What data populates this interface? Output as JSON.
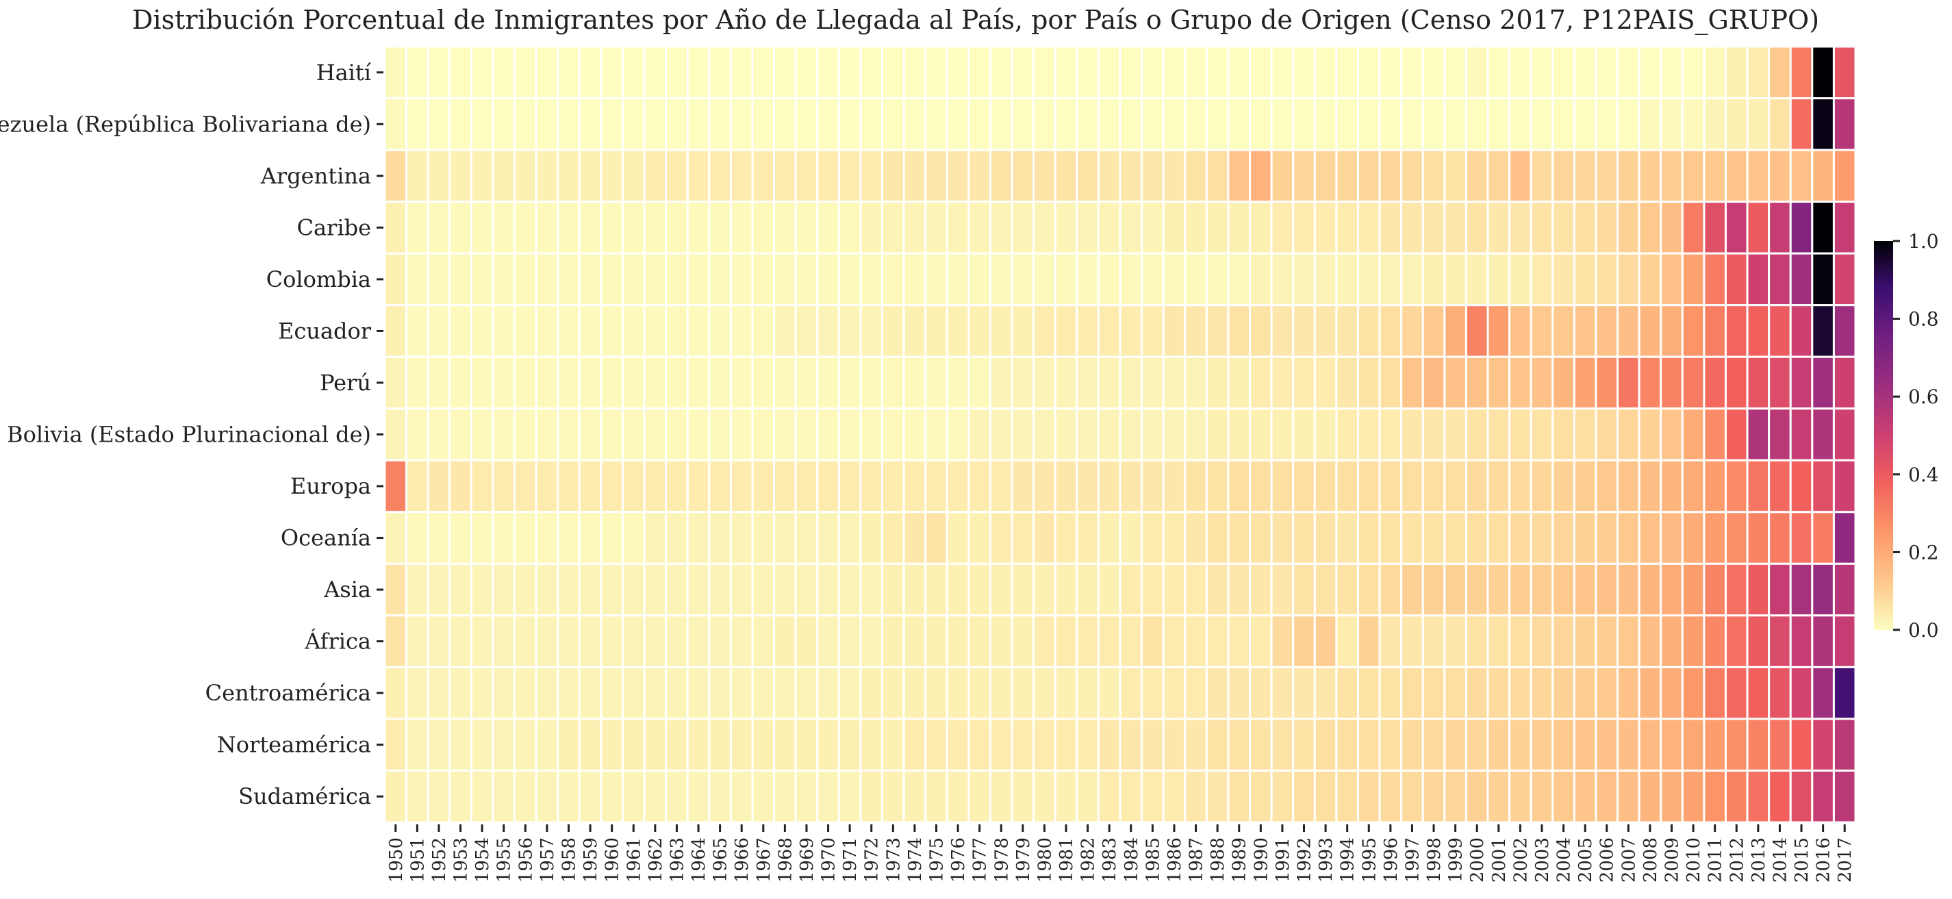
{
  "chart_data": {
    "type": "heatmap",
    "title": "Distribución Porcentual de Inmigrantes por Año de Llegada al País, por País o Grupo de Origen (Censo 2017, P12PAIS_GRUPO)",
    "xlabel": "",
    "ylabel": "",
    "rows": [
      "Haití",
      "Venezuela (República Bolivariana de)",
      "Argentina",
      "Caribe",
      "Colombia",
      "Ecuador",
      "Perú",
      "Bolivia (Estado Plurinacional de)",
      "Europa",
      "Oceanía",
      "Asia",
      "África",
      "Centroamérica",
      "Norteamérica",
      "Sudamérica"
    ],
    "columns": [
      "1950",
      "1951",
      "1952",
      "1953",
      "1954",
      "1955",
      "1956",
      "1957",
      "1958",
      "1959",
      "1960",
      "1961",
      "1962",
      "1963",
      "1964",
      "1965",
      "1966",
      "1967",
      "1968",
      "1969",
      "1970",
      "1971",
      "1972",
      "1973",
      "1974",
      "1975",
      "1976",
      "1977",
      "1978",
      "1979",
      "1980",
      "1981",
      "1982",
      "1983",
      "1984",
      "1985",
      "1986",
      "1987",
      "1988",
      "1989",
      "1990",
      "1991",
      "1992",
      "1993",
      "1994",
      "1995",
      "1996",
      "1997",
      "1998",
      "1999",
      "2000",
      "2001",
      "2002",
      "2003",
      "2004",
      "2005",
      "2006",
      "2007",
      "2008",
      "2009",
      "2010",
      "2011",
      "2012",
      "2013",
      "2014",
      "2015",
      "2016",
      "2017"
    ],
    "values": [
      [
        0.01,
        0,
        0,
        0,
        0,
        0,
        0,
        0,
        0,
        0,
        0,
        0,
        0,
        0,
        0,
        0,
        0,
        0,
        0,
        0,
        0,
        0,
        0,
        0,
        0,
        0,
        0,
        0,
        0,
        0,
        0,
        0,
        0,
        0,
        0,
        0,
        0,
        0,
        0,
        0,
        0,
        0,
        0,
        0,
        0,
        0,
        0,
        0,
        0,
        0,
        0.01,
        0,
        0,
        0,
        0,
        0,
        0,
        0,
        0,
        0,
        0,
        0.01,
        0.03,
        0.04,
        0.12,
        0.32,
        1.0,
        0.42
      ],
      [
        0.01,
        0,
        0,
        0,
        0,
        0,
        0,
        0,
        0,
        0,
        0,
        0,
        0,
        0,
        0,
        0,
        0,
        0,
        0,
        0,
        0,
        0,
        0,
        0,
        0,
        0,
        0,
        0,
        0,
        0,
        0,
        0,
        0,
        0,
        0,
        0,
        0,
        0,
        0,
        0,
        0,
        0,
        0,
        0,
        0,
        0,
        0,
        0,
        0,
        0,
        0,
        0,
        0,
        0,
        0,
        0,
        0,
        0,
        0.01,
        0.01,
        0.01,
        0.02,
        0.03,
        0.03,
        0.06,
        0.35,
        0.98,
        0.56
      ],
      [
        0.08,
        0.03,
        0.03,
        0.03,
        0.03,
        0.03,
        0.03,
        0.03,
        0.03,
        0.03,
        0.03,
        0.03,
        0.04,
        0.04,
        0.04,
        0.04,
        0.04,
        0.04,
        0.04,
        0.04,
        0.04,
        0.04,
        0.04,
        0.05,
        0.05,
        0.05,
        0.05,
        0.05,
        0.06,
        0.06,
        0.06,
        0.06,
        0.06,
        0.05,
        0.05,
        0.05,
        0.05,
        0.06,
        0.07,
        0.13,
        0.18,
        0.1,
        0.09,
        0.09,
        0.09,
        0.09,
        0.09,
        0.08,
        0.07,
        0.06,
        0.09,
        0.09,
        0.14,
        0.08,
        0.09,
        0.09,
        0.09,
        0.1,
        0.11,
        0.11,
        0.12,
        0.12,
        0.13,
        0.13,
        0.14,
        0.14,
        0.17,
        0.24
      ],
      [
        0.03,
        0.01,
        0.01,
        0.01,
        0.01,
        0.01,
        0.01,
        0.01,
        0.01,
        0.01,
        0.01,
        0.01,
        0.01,
        0.01,
        0.01,
        0.01,
        0.01,
        0.01,
        0.01,
        0.01,
        0.01,
        0.01,
        0.02,
        0.02,
        0.02,
        0.02,
        0.02,
        0.02,
        0.02,
        0.02,
        0.02,
        0.02,
        0.02,
        0.02,
        0.02,
        0.02,
        0.03,
        0.03,
        0.03,
        0.03,
        0.03,
        0.04,
        0.04,
        0.04,
        0.04,
        0.04,
        0.05,
        0.05,
        0.05,
        0.05,
        0.06,
        0.05,
        0.05,
        0.06,
        0.06,
        0.07,
        0.08,
        0.1,
        0.12,
        0.15,
        0.32,
        0.44,
        0.52,
        0.4,
        0.52,
        0.7,
        1.0,
        0.52
      ],
      [
        0.03,
        0.01,
        0.01,
        0.01,
        0.01,
        0.01,
        0.01,
        0.01,
        0.01,
        0.01,
        0.01,
        0.01,
        0.01,
        0.01,
        0.01,
        0.01,
        0.01,
        0.01,
        0.01,
        0.01,
        0.01,
        0.01,
        0.01,
        0.01,
        0.01,
        0.01,
        0.01,
        0.01,
        0.01,
        0.01,
        0.01,
        0.01,
        0.01,
        0.01,
        0.01,
        0.01,
        0.01,
        0.01,
        0.01,
        0.01,
        0.02,
        0.02,
        0.02,
        0.02,
        0.02,
        0.02,
        0.02,
        0.02,
        0.03,
        0.03,
        0.03,
        0.03,
        0.03,
        0.04,
        0.05,
        0.06,
        0.07,
        0.08,
        0.1,
        0.14,
        0.22,
        0.32,
        0.4,
        0.5,
        0.52,
        0.62,
        0.99,
        0.48
      ],
      [
        0.03,
        0.01,
        0.01,
        0.01,
        0.01,
        0.01,
        0.01,
        0.01,
        0.01,
        0.01,
        0.01,
        0.01,
        0.01,
        0.01,
        0.01,
        0.01,
        0.01,
        0.01,
        0.02,
        0.02,
        0.02,
        0.02,
        0.02,
        0.03,
        0.03,
        0.03,
        0.03,
        0.03,
        0.03,
        0.03,
        0.04,
        0.04,
        0.04,
        0.04,
        0.04,
        0.04,
        0.05,
        0.05,
        0.05,
        0.06,
        0.06,
        0.05,
        0.05,
        0.05,
        0.05,
        0.06,
        0.07,
        0.09,
        0.12,
        0.19,
        0.3,
        0.24,
        0.14,
        0.12,
        0.12,
        0.13,
        0.14,
        0.15,
        0.17,
        0.19,
        0.26,
        0.31,
        0.37,
        0.38,
        0.4,
        0.5,
        0.95,
        0.62
      ],
      [
        0.02,
        0.01,
        0.01,
        0.01,
        0.01,
        0.01,
        0.01,
        0.01,
        0.01,
        0.01,
        0.01,
        0.01,
        0.01,
        0.01,
        0.01,
        0.01,
        0.01,
        0.01,
        0.01,
        0.01,
        0.01,
        0.01,
        0.01,
        0.01,
        0.01,
        0.01,
        0.01,
        0.01,
        0.02,
        0.02,
        0.02,
        0.02,
        0.02,
        0.02,
        0.02,
        0.02,
        0.02,
        0.02,
        0.03,
        0.03,
        0.04,
        0.04,
        0.04,
        0.04,
        0.05,
        0.06,
        0.07,
        0.13,
        0.16,
        0.14,
        0.14,
        0.13,
        0.13,
        0.14,
        0.17,
        0.22,
        0.27,
        0.33,
        0.29,
        0.3,
        0.32,
        0.36,
        0.38,
        0.42,
        0.45,
        0.52,
        0.62,
        0.5
      ],
      [
        0.02,
        0.01,
        0.01,
        0.01,
        0.01,
        0.01,
        0.01,
        0.01,
        0.01,
        0.01,
        0.01,
        0.01,
        0.01,
        0.01,
        0.01,
        0.01,
        0.01,
        0.01,
        0.01,
        0.01,
        0.01,
        0.01,
        0.01,
        0.01,
        0.01,
        0.01,
        0.01,
        0.02,
        0.02,
        0.02,
        0.02,
        0.02,
        0.02,
        0.02,
        0.02,
        0.02,
        0.02,
        0.02,
        0.03,
        0.03,
        0.03,
        0.03,
        0.03,
        0.03,
        0.04,
        0.04,
        0.04,
        0.05,
        0.05,
        0.05,
        0.06,
        0.06,
        0.06,
        0.06,
        0.07,
        0.07,
        0.08,
        0.09,
        0.1,
        0.13,
        0.2,
        0.28,
        0.38,
        0.58,
        0.55,
        0.52,
        0.58,
        0.5
      ],
      [
        0.3,
        0.04,
        0.05,
        0.05,
        0.04,
        0.04,
        0.04,
        0.04,
        0.04,
        0.04,
        0.04,
        0.04,
        0.04,
        0.04,
        0.04,
        0.04,
        0.04,
        0.04,
        0.04,
        0.04,
        0.04,
        0.04,
        0.04,
        0.04,
        0.04,
        0.04,
        0.04,
        0.04,
        0.04,
        0.05,
        0.05,
        0.05,
        0.05,
        0.05,
        0.05,
        0.05,
        0.05,
        0.06,
        0.06,
        0.07,
        0.07,
        0.07,
        0.07,
        0.07,
        0.07,
        0.07,
        0.07,
        0.07,
        0.07,
        0.07,
        0.08,
        0.08,
        0.08,
        0.09,
        0.1,
        0.11,
        0.12,
        0.13,
        0.15,
        0.17,
        0.2,
        0.24,
        0.28,
        0.33,
        0.36,
        0.38,
        0.44,
        0.5
      ],
      [
        0.02,
        0.01,
        0.01,
        0.01,
        0.01,
        0.01,
        0.01,
        0.01,
        0.01,
        0.01,
        0.01,
        0.01,
        0.02,
        0.02,
        0.02,
        0.02,
        0.02,
        0.02,
        0.02,
        0.02,
        0.02,
        0.02,
        0.03,
        0.04,
        0.05,
        0.06,
        0.03,
        0.03,
        0.04,
        0.04,
        0.05,
        0.04,
        0.04,
        0.03,
        0.03,
        0.04,
        0.04,
        0.05,
        0.06,
        0.06,
        0.06,
        0.06,
        0.06,
        0.06,
        0.05,
        0.06,
        0.06,
        0.06,
        0.06,
        0.06,
        0.07,
        0.07,
        0.08,
        0.08,
        0.09,
        0.1,
        0.11,
        0.12,
        0.14,
        0.16,
        0.2,
        0.24,
        0.27,
        0.3,
        0.32,
        0.34,
        0.32,
        0.66
      ],
      [
        0.06,
        0.02,
        0.02,
        0.02,
        0.02,
        0.02,
        0.02,
        0.02,
        0.02,
        0.02,
        0.02,
        0.02,
        0.02,
        0.02,
        0.02,
        0.02,
        0.02,
        0.02,
        0.02,
        0.02,
        0.02,
        0.02,
        0.02,
        0.03,
        0.03,
        0.03,
        0.03,
        0.03,
        0.03,
        0.03,
        0.03,
        0.03,
        0.03,
        0.03,
        0.04,
        0.04,
        0.04,
        0.04,
        0.05,
        0.05,
        0.05,
        0.05,
        0.06,
        0.06,
        0.06,
        0.07,
        0.08,
        0.1,
        0.1,
        0.1,
        0.1,
        0.1,
        0.11,
        0.11,
        0.12,
        0.13,
        0.14,
        0.15,
        0.17,
        0.2,
        0.24,
        0.3,
        0.34,
        0.4,
        0.52,
        0.6,
        0.64,
        0.56
      ],
      [
        0.06,
        0.02,
        0.02,
        0.02,
        0.02,
        0.02,
        0.02,
        0.02,
        0.02,
        0.02,
        0.02,
        0.02,
        0.02,
        0.02,
        0.02,
        0.02,
        0.02,
        0.02,
        0.03,
        0.03,
        0.02,
        0.02,
        0.02,
        0.03,
        0.03,
        0.03,
        0.03,
        0.03,
        0.03,
        0.03,
        0.04,
        0.04,
        0.04,
        0.04,
        0.04,
        0.06,
        0.04,
        0.04,
        0.04,
        0.04,
        0.04,
        0.08,
        0.1,
        0.11,
        0.04,
        0.1,
        0.05,
        0.05,
        0.05,
        0.05,
        0.06,
        0.06,
        0.07,
        0.08,
        0.09,
        0.1,
        0.11,
        0.12,
        0.15,
        0.19,
        0.24,
        0.29,
        0.34,
        0.4,
        0.46,
        0.52,
        0.58,
        0.52
      ],
      [
        0.03,
        0.02,
        0.02,
        0.02,
        0.02,
        0.02,
        0.02,
        0.02,
        0.02,
        0.02,
        0.02,
        0.02,
        0.02,
        0.02,
        0.02,
        0.02,
        0.02,
        0.02,
        0.02,
        0.02,
        0.02,
        0.02,
        0.03,
        0.03,
        0.03,
        0.03,
        0.03,
        0.03,
        0.03,
        0.03,
        0.03,
        0.03,
        0.03,
        0.03,
        0.04,
        0.04,
        0.04,
        0.04,
        0.05,
        0.05,
        0.05,
        0.05,
        0.05,
        0.05,
        0.06,
        0.06,
        0.06,
        0.07,
        0.07,
        0.07,
        0.08,
        0.08,
        0.08,
        0.09,
        0.1,
        0.11,
        0.12,
        0.14,
        0.17,
        0.2,
        0.25,
        0.31,
        0.36,
        0.38,
        0.42,
        0.48,
        0.62,
        0.86
      ],
      [
        0.04,
        0.02,
        0.02,
        0.02,
        0.02,
        0.02,
        0.02,
        0.02,
        0.03,
        0.03,
        0.03,
        0.03,
        0.03,
        0.03,
        0.03,
        0.03,
        0.03,
        0.03,
        0.03,
        0.03,
        0.03,
        0.03,
        0.03,
        0.03,
        0.04,
        0.04,
        0.04,
        0.04,
        0.04,
        0.04,
        0.04,
        0.04,
        0.04,
        0.05,
        0.05,
        0.05,
        0.05,
        0.05,
        0.06,
        0.06,
        0.06,
        0.06,
        0.06,
        0.07,
        0.07,
        0.07,
        0.07,
        0.08,
        0.08,
        0.09,
        0.09,
        0.1,
        0.1,
        0.11,
        0.12,
        0.13,
        0.14,
        0.15,
        0.16,
        0.18,
        0.21,
        0.24,
        0.27,
        0.3,
        0.33,
        0.38,
        0.48,
        0.55
      ],
      [
        0.03,
        0.02,
        0.02,
        0.02,
        0.02,
        0.02,
        0.02,
        0.02,
        0.02,
        0.02,
        0.02,
        0.02,
        0.02,
        0.02,
        0.02,
        0.02,
        0.02,
        0.02,
        0.02,
        0.02,
        0.02,
        0.02,
        0.03,
        0.03,
        0.03,
        0.03,
        0.03,
        0.03,
        0.03,
        0.03,
        0.03,
        0.03,
        0.03,
        0.04,
        0.04,
        0.04,
        0.04,
        0.05,
        0.05,
        0.06,
        0.06,
        0.06,
        0.07,
        0.07,
        0.07,
        0.08,
        0.08,
        0.08,
        0.09,
        0.09,
        0.1,
        0.1,
        0.1,
        0.11,
        0.12,
        0.13,
        0.14,
        0.15,
        0.17,
        0.19,
        0.22,
        0.26,
        0.3,
        0.34,
        0.38,
        0.44,
        0.52,
        0.55
      ]
    ],
    "vmin": 0.0,
    "vmax": 1.0,
    "colormap": "magma_r",
    "colorbar_ticks": [
      "0.0",
      "0.2",
      "0.4",
      "0.6",
      "0.8",
      "1.0"
    ],
    "colorbar_tick_values": [
      0.0,
      0.2,
      0.4,
      0.6,
      0.8,
      1.0
    ],
    "grid": false
  }
}
